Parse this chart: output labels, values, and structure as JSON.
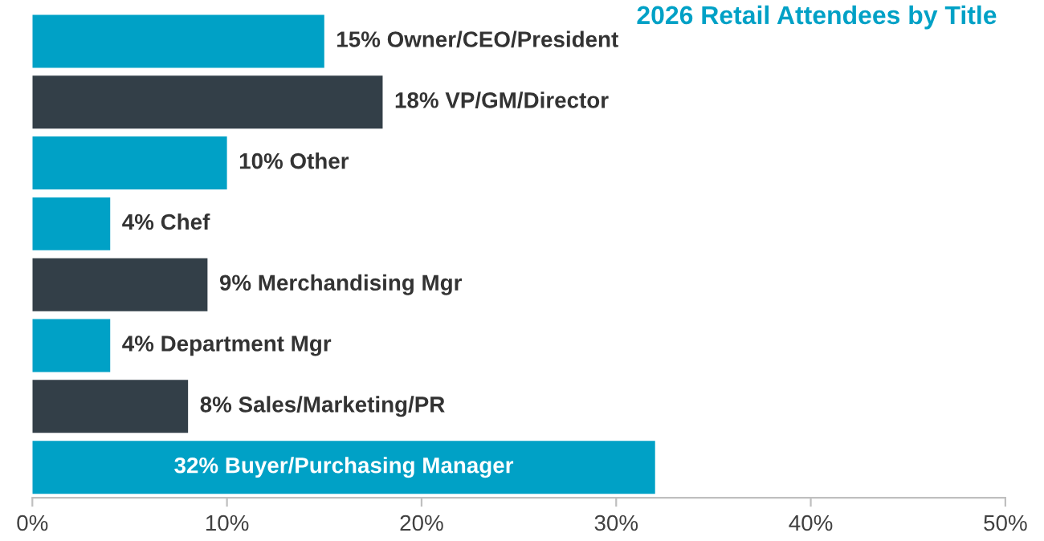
{
  "chart_data": {
    "type": "bar",
    "orientation": "horizontal",
    "title": "2026 Retail Attendees by Title",
    "categories": [
      "Owner/CEO/President",
      "VP/GM/Director",
      "Other",
      "Chef",
      "Merchandising Mgr",
      "Department Mgr",
      "Sales/Marketing/PR",
      "Buyer/Purchasing Manager"
    ],
    "values": [
      15,
      18,
      10,
      4,
      9,
      4,
      8,
      32
    ],
    "colors": [
      "#00a1c6",
      "#333f48",
      "#00a1c6",
      "#00a1c6",
      "#333f48",
      "#00a1c6",
      "#333f48",
      "#00a1c6"
    ],
    "value_labels": [
      "15%",
      "18%",
      "10%",
      "4%",
      "9%",
      "4%",
      "8%",
      "32%"
    ],
    "xlim": [
      0,
      50
    ],
    "xticks": [
      {
        "value": 0,
        "label": "0%"
      },
      {
        "value": 10,
        "label": "10%"
      },
      {
        "value": 20,
        "label": "20%"
      },
      {
        "value": 30,
        "label": "30%"
      },
      {
        "value": 40,
        "label": "40%"
      },
      {
        "value": 50,
        "label": "50%"
      }
    ],
    "grid": false,
    "legend": false
  }
}
